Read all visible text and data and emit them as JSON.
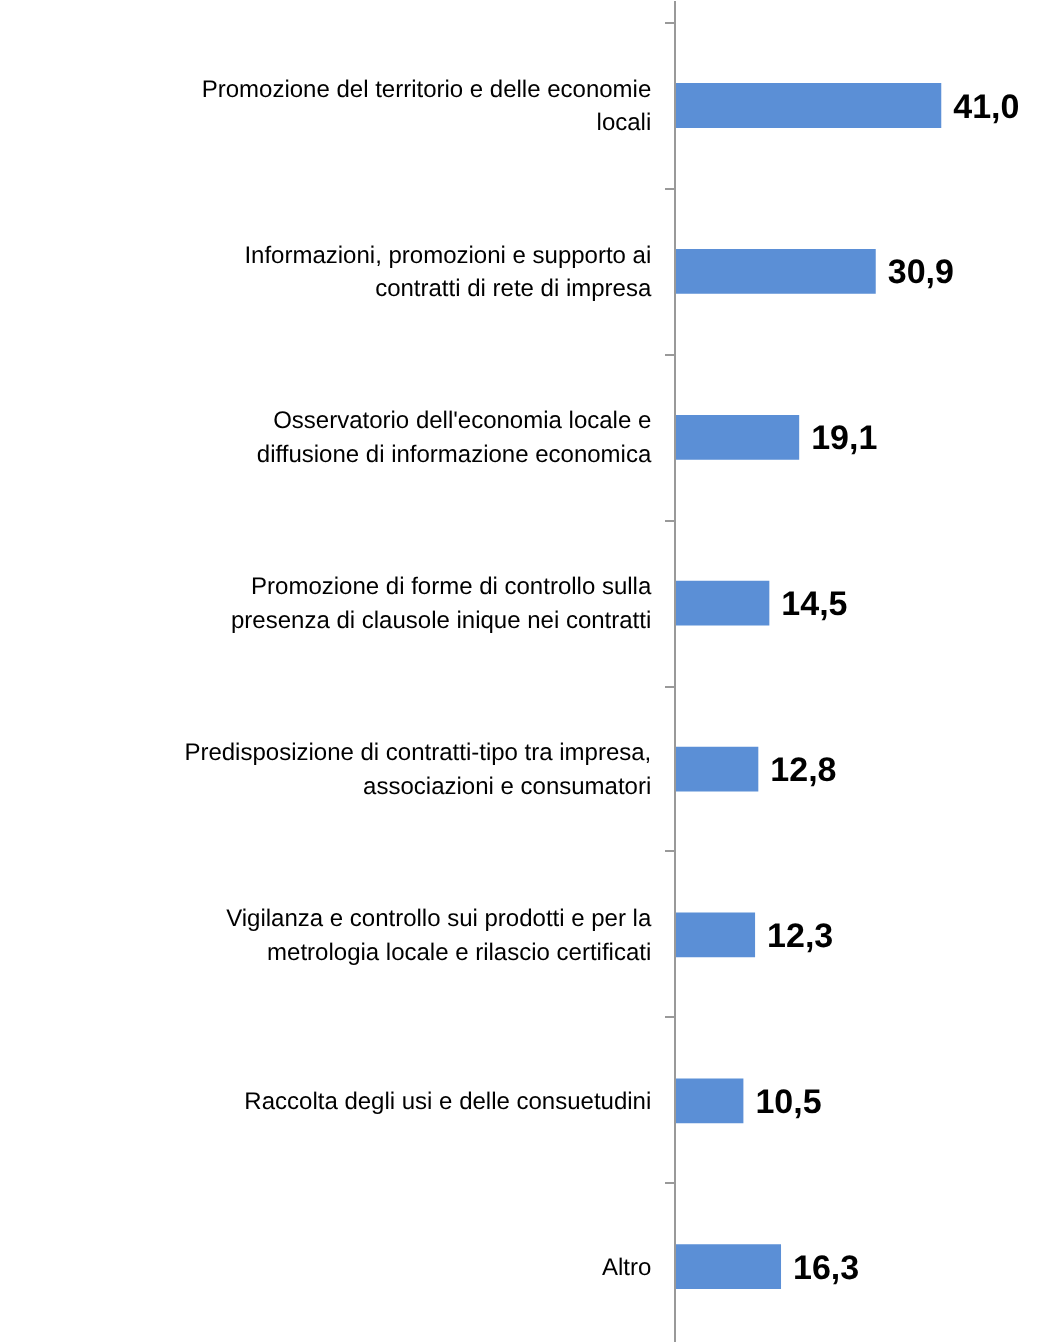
{
  "chart_data": {
    "type": "bar",
    "orientation": "horizontal",
    "value_labels": [
      "41,0",
      "30,9",
      "19,1",
      "14,5",
      "12,8",
      "12,3",
      "10,5",
      "16,3"
    ],
    "color": "#5b8fd6",
    "categories": [
      "Promozione del territorio e delle economie\nlocali",
      "Informazioni, promozioni e supporto ai\ncontratti di rete di impresa",
      "Osservatorio dell'economia locale e\ndiffusione di informazione economica",
      "Promozione di forme di controllo sulla\npresenza di clausole inique nei contratti",
      "Predisposizione di contratti-tipo tra impresa,\nassociazioni e consumatori",
      "Vigilanza e controllo sui prodotti e per la\nmetrologia locale e rilascio certificati",
      "Raccolta degli usi e delle consuetudini",
      "Altro"
    ],
    "values": [
      41.0,
      30.9,
      19.1,
      14.5,
      12.8,
      12.3,
      10.5,
      16.3
    ]
  }
}
